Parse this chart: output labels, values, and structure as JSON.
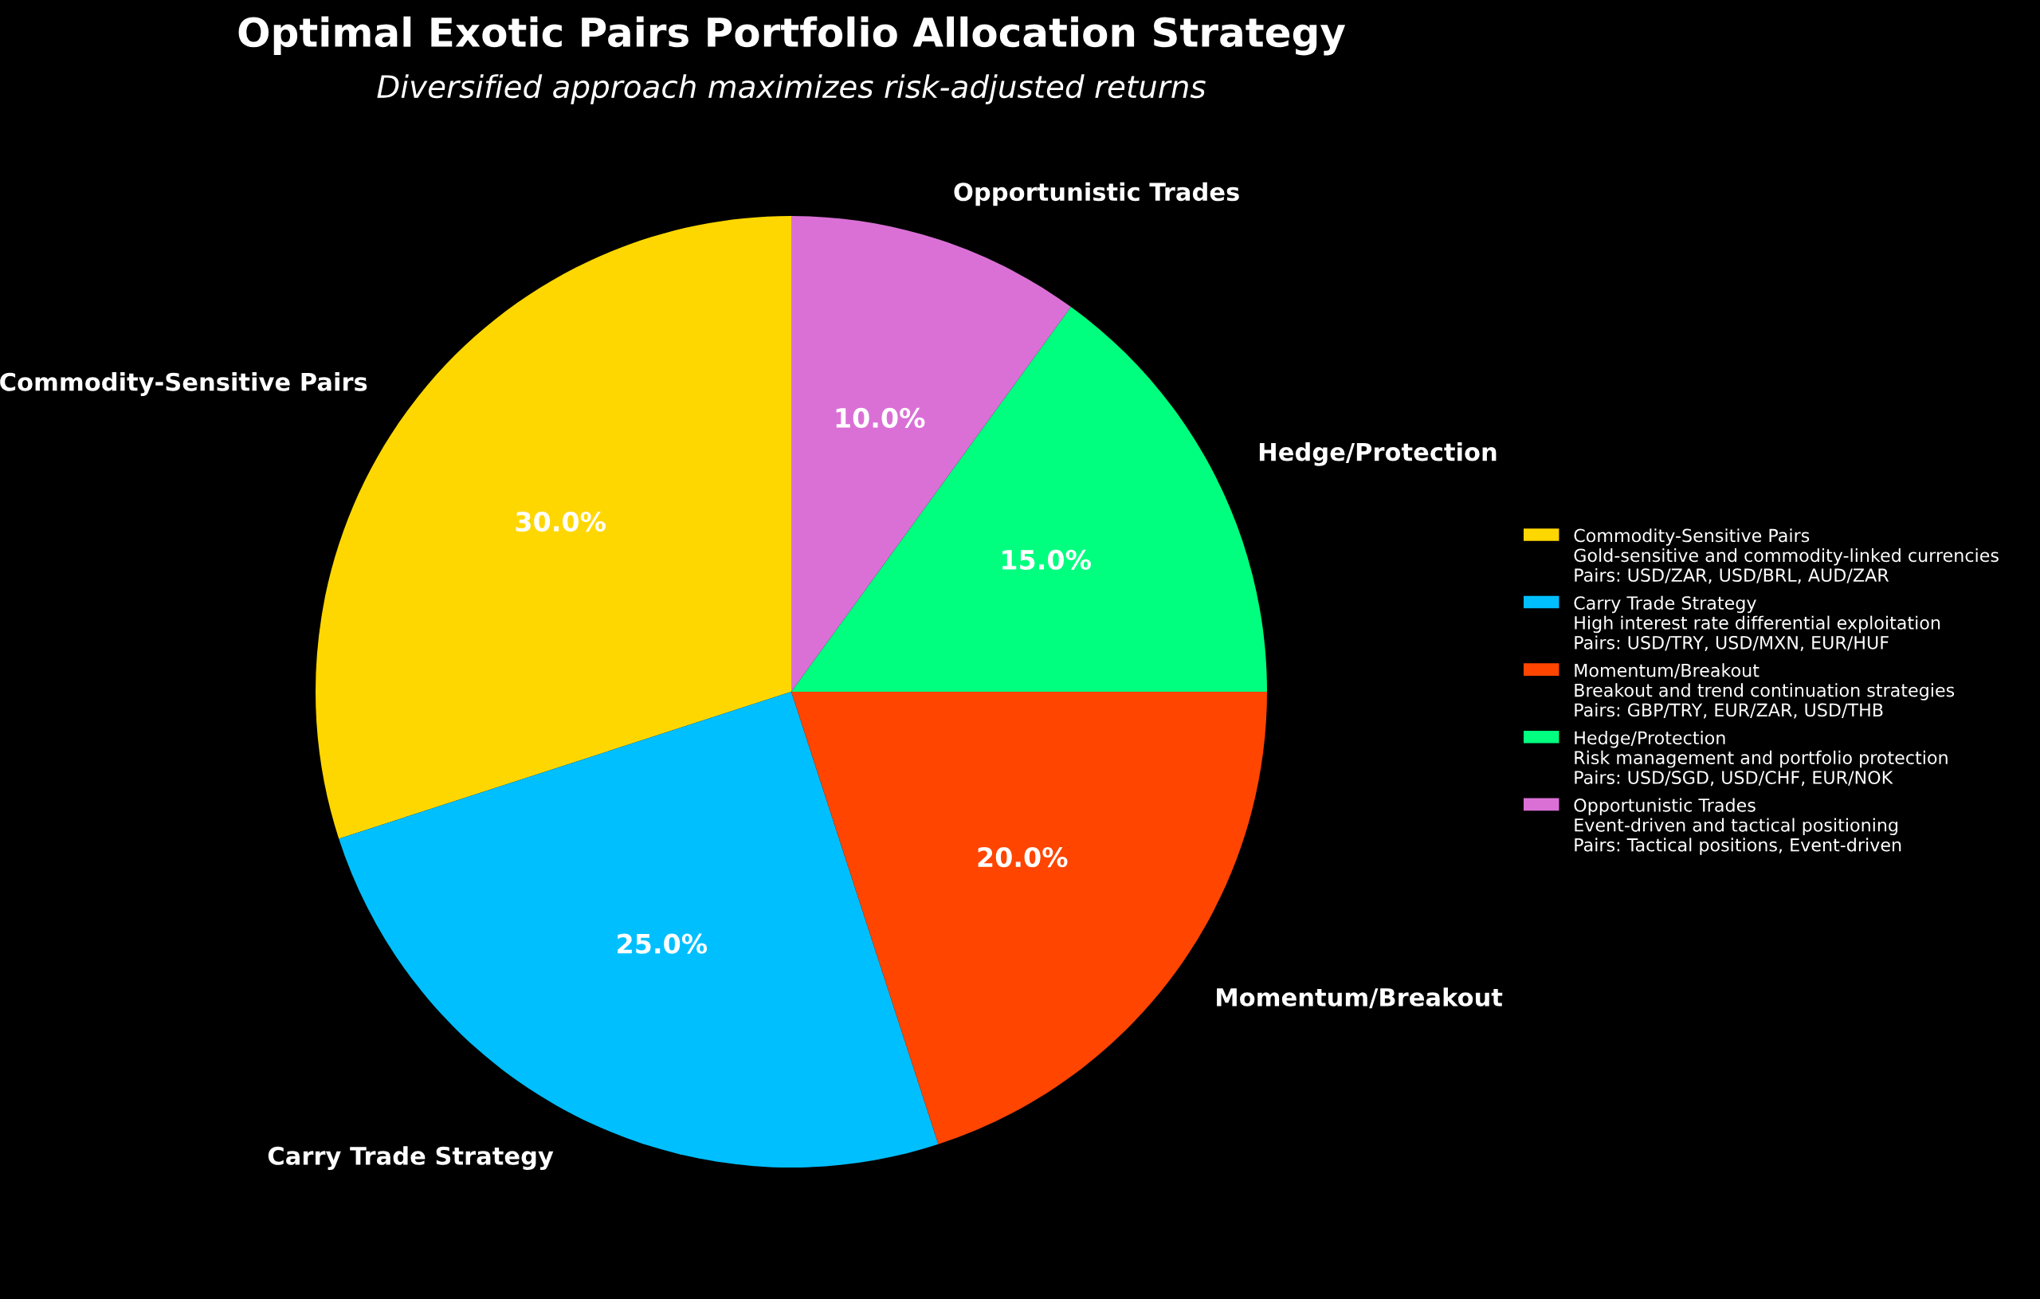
{
  "chart_data": {
    "type": "pie",
    "title": "Optimal Exotic Pairs Portfolio Allocation Strategy",
    "subtitle": "Diversified approach maximizes risk-adjusted returns",
    "categories": [
      "Commodity-Sensitive Pairs",
      "Carry Trade Strategy",
      "Momentum/Breakout",
      "Hedge/Protection",
      "Opportunistic Trades"
    ],
    "values": [
      30,
      25,
      20,
      15,
      10
    ],
    "value_labels": [
      "30.0%",
      "25.0%",
      "20.0%",
      "15.0%",
      "10.0%"
    ],
    "colors": [
      "#ffd700",
      "#00bfff",
      "#ff4500",
      "#00ff7f",
      "#da70d6"
    ],
    "legend": "right",
    "annotations": [
      "Gold-sensitive and commodity-linked currencies\nPairs: USD/ZAR, USD/BRL, AUD/ZAR",
      "High interest rate differential exploitation\nPairs: USD/TRY, USD/MXN, EUR/HUF",
      "Breakout and trend continuation strategies\nPairs: GBP/TRY, EUR/ZAR, USD/THB",
      "Risk management and portfolio protection\nPairs: USD/SGD, USD/CHF, EUR/NOK",
      "Event-driven and tactical positioning\nPairs: Tactical positions, Event-driven"
    ]
  }
}
